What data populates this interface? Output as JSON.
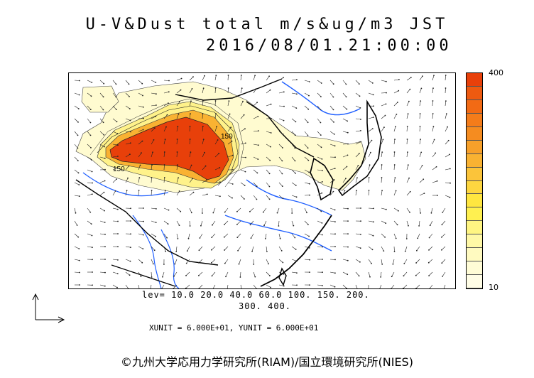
{
  "title": {
    "line1": "U-V&Dust total m/s&ug/m3 JST",
    "line2": "2016/08/01.21:00:00"
  },
  "colorbar": {
    "max_label": "400",
    "min_label": "10",
    "colors": [
      "#e8400a",
      "#ee5a10",
      "#f26a14",
      "#f47c1a",
      "#f58c20",
      "#f7a02a",
      "#f9b232",
      "#fbc43a",
      "#fdd640",
      "#ffe640",
      "#fff050",
      "#fff582",
      "#fff8a6",
      "#fffac0",
      "#fffcd6",
      "#fffde6"
    ]
  },
  "levels": {
    "line1": "lev= 10.0 20.0 40.0 60.0 100. 150. 200.",
    "line2": "300. 400."
  },
  "units_text": "XUNIT = 6.000E+01, YUNIT = 6.000E+01",
  "contour_labels": [
    "150",
    "150"
  ],
  "copyright": "©九州大学応用力学研究所(RIAM)/国立環境研究所(NIES)",
  "accent_colors": {
    "dust_high": "#e8400a",
    "dust_low": "#fffbd0",
    "rivers": "#1f5fff",
    "coast": "#000000"
  }
}
